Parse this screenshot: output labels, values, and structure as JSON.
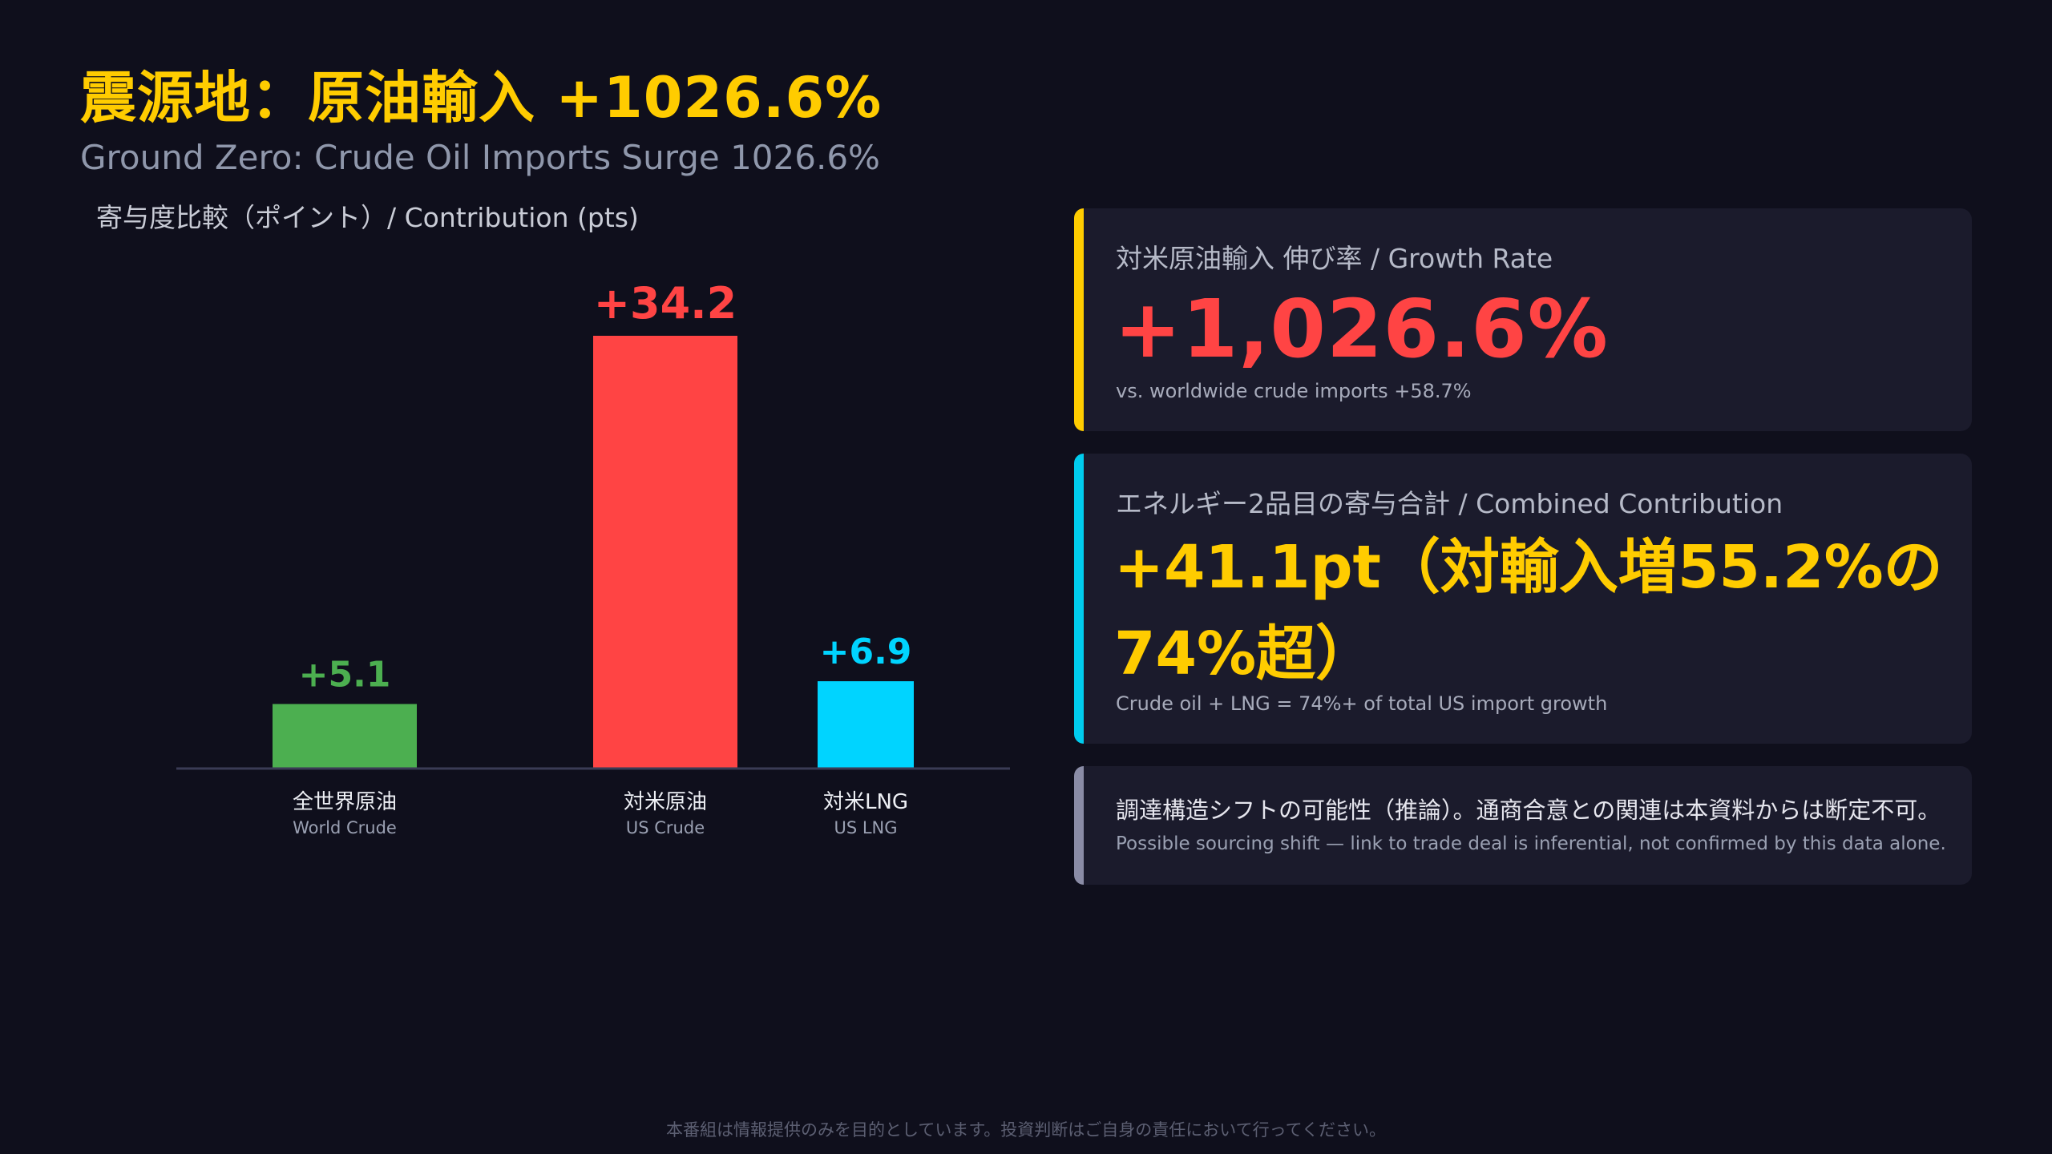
{
  "header": {
    "title": "震源地：原油輸入 +1026.6%",
    "subtitle": "Ground Zero: Crude Oil Imports Surge 1026.6%",
    "chart_label": "寄与度比較（ポイント）/ Contribution (pts)"
  },
  "chart_data": {
    "type": "bar",
    "title": "寄与度比較（ポイント）/ Contribution (pts)",
    "categories": [
      {
        "jp": "全世界原油",
        "en": "World Crude"
      },
      {
        "jp": "対米原油",
        "en": "US Crude"
      },
      {
        "jp": "対米LNG",
        "en": "US LNG"
      }
    ],
    "values": [
      5.1,
      34.2,
      6.9
    ],
    "value_labels": [
      "+5.1",
      "+34.2",
      "+6.9"
    ],
    "colors": [
      "#4caf50",
      "#ff4444",
      "#00d4ff"
    ],
    "ylim": [
      0,
      34.2
    ],
    "grid": false,
    "legend": "none"
  },
  "cards": {
    "growth": {
      "label": "対米原油輸入 伸び率 / Growth Rate",
      "value": "+1,026.6%",
      "note": "vs. worldwide crude imports +58.7%",
      "accent": "#ffcc00"
    },
    "combined": {
      "label": "エネルギー2品目の寄与合計 / Combined Contribution",
      "value": "+41.1pt（対輸入増55.2%の74%超）",
      "note": "Crude oil + LNG = 74%+ of total US import growth",
      "accent": "#00ccee"
    },
    "caveat": {
      "jp": "調達構造シフトの可能性（推論）。通商合意との関連は本資料からは断定不可。",
      "en": "Possible sourcing shift — link to trade deal is inferential, not confirmed by this data alone.",
      "accent": "#8a8ca6"
    }
  },
  "footer": {
    "disclaimer": "本番組は情報提供のみを目的としています。投資判断はご自身の責任において行ってください。"
  }
}
